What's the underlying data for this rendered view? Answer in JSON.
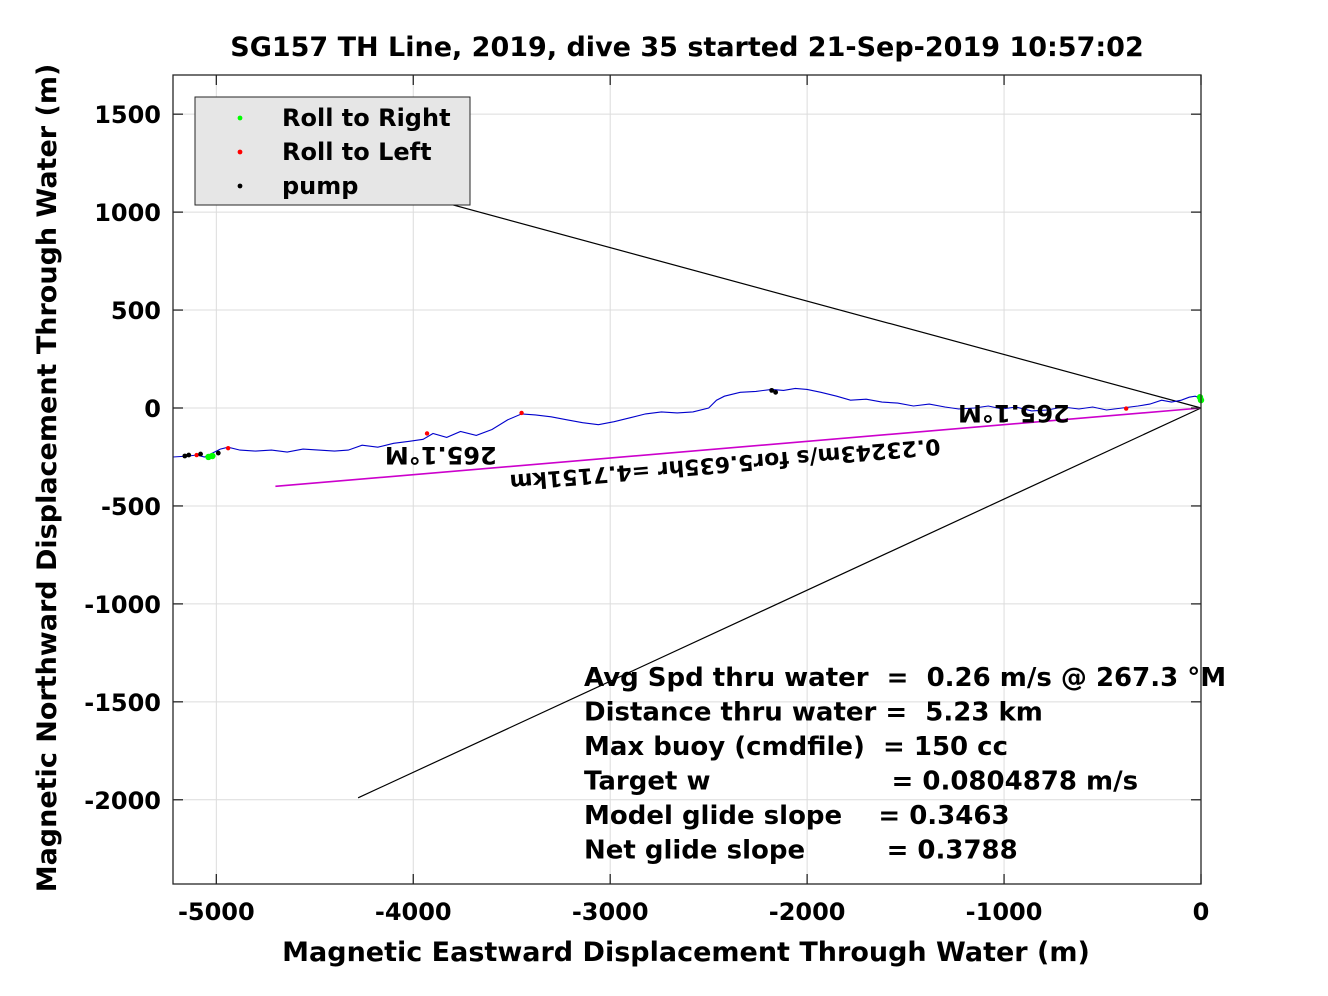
{
  "chart_data": {
    "type": "line",
    "title": "SG157 TH Line, 2019, dive 35 started 21-Sep-2019 10:57:02",
    "xlabel": "Magnetic Eastward Displacement Through Water (m)",
    "ylabel": "Magnetic Northward Displacement Through Water (m)",
    "xlim": [
      -5220,
      0
    ],
    "ylim": [
      -2430,
      1700
    ],
    "xticks": [
      -5000,
      -4000,
      -3000,
      -2000,
      -1000,
      0
    ],
    "yticks": [
      1500,
      1000,
      500,
      0,
      -500,
      -1000,
      -1500,
      -2000
    ],
    "grid": true,
    "legend_position": "top-left",
    "legend": [
      {
        "label": "Roll to Right",
        "color": "#00ff00"
      },
      {
        "label": "Roll to Left",
        "color": "#ff0000"
      },
      {
        "label": "pump",
        "color": "#000000"
      }
    ],
    "track": {
      "color": "#0000cc",
      "x": [
        0,
        -30,
        -60,
        -100,
        -150,
        -200,
        -260,
        -320,
        -400,
        -480,
        -550,
        -620,
        -700,
        -780,
        -860,
        -940,
        -1010,
        -1080,
        -1150,
        -1230,
        -1300,
        -1380,
        -1460,
        -1540,
        -1620,
        -1700,
        -1780,
        -1850,
        -1930,
        -2000,
        -2060,
        -2120,
        -2180,
        -2260,
        -2340,
        -2420,
        -2460,
        -2500,
        -2580,
        -2660,
        -2740,
        -2820,
        -2900,
        -2980,
        -3060,
        -3140,
        -3220,
        -3300,
        -3380,
        -3450,
        -3520,
        -3600,
        -3680,
        -3760,
        -3830,
        -3900,
        -3950,
        -4020,
        -4100,
        -4180,
        -4260,
        -4330,
        -4400,
        -4480,
        -4560,
        -4640,
        -4720,
        -4800,
        -4880,
        -4940,
        -4980,
        -5020,
        -5060,
        -5100,
        -5140,
        -5220
      ],
      "y": [
        50,
        60,
        55,
        40,
        30,
        40,
        20,
        10,
        0,
        -10,
        5,
        -5,
        5,
        -10,
        -15,
        5,
        -5,
        10,
        0,
        -5,
        5,
        20,
        10,
        25,
        30,
        45,
        40,
        60,
        80,
        95,
        100,
        90,
        95,
        85,
        80,
        60,
        40,
        0,
        -20,
        -25,
        -20,
        -30,
        -50,
        -70,
        -85,
        -75,
        -60,
        -45,
        -35,
        -30,
        -60,
        -110,
        -140,
        -120,
        -150,
        -130,
        -160,
        -170,
        -180,
        -200,
        -190,
        -215,
        -220,
        -215,
        -210,
        -225,
        -215,
        -220,
        -215,
        -200,
        -210,
        -230,
        -250,
        -240,
        -245,
        -250
      ]
    },
    "roll_right_points": {
      "x": [
        0,
        -5,
        -5020,
        -5040
      ],
      "y": [
        40,
        55,
        -245,
        -250
      ]
    },
    "roll_left_points": {
      "x": [
        -380,
        -900,
        -3450,
        -3930,
        -4940,
        -5100
      ],
      "y": [
        -3,
        -10,
        -25,
        -130,
        -205,
        -240
      ]
    },
    "pump_points": {
      "x": [
        -2160,
        -2180,
        -4990,
        -5080,
        -5140,
        -5160
      ],
      "y": [
        80,
        90,
        -230,
        -235,
        -240,
        -245
      ]
    },
    "lines": [
      {
        "name": "heading_upper",
        "color": "#000000",
        "x": [
          0,
          -4580
        ],
        "y": [
          0,
          1250
        ]
      },
      {
        "name": "heading_lower",
        "color": "#000000",
        "x": [
          0,
          -4280
        ],
        "y": [
          0,
          -1990
        ]
      },
      {
        "name": "net_displacement",
        "color": "#cc00cc",
        "x": [
          0,
          -4700
        ],
        "y": [
          0,
          -400
        ]
      }
    ],
    "rotated_annotations": [
      {
        "text": "265.1°M",
        "x": -950,
        "y": 15
      },
      {
        "text": "265.1°M",
        "x": -3860,
        "y": -200
      },
      {
        "text": "0.23243m/s for5.635hr =4.7151km",
        "x": -2420,
        "y": -250
      }
    ],
    "stats": [
      "Avg Spd thru water  =  0.26 m/s @ 267.3 °M",
      "Distance thru water =  5.23 km",
      "Max buoy (cmdfile)  = 150 cc",
      "Target w                    = 0.0804878 m/s",
      "Model glide slope    = 0.3463",
      "Net glide slope         = 0.3788"
    ]
  }
}
